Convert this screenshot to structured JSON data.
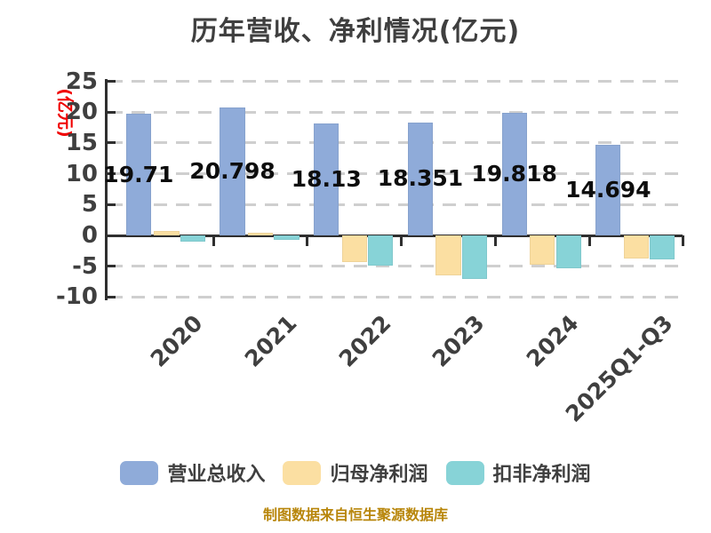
{
  "title": "历年营收、净利情况(亿元)",
  "y_axis_unit_label": "(亿元)",
  "footer": "制图数据来自恒生聚源数据库",
  "colors": {
    "revenue_bar": "#8fabd9",
    "net_profit_bar": "#fbdfa2",
    "deducted_net_profit_bar": "#87d3d7",
    "title_text": "#3f3f3f",
    "axis_text": "#3f3f3f",
    "value_label_text": "#0d0d0d",
    "axis_line": "#2f2f2f",
    "gridline": "#cfcfcf",
    "unit_label_text": "#f00000",
    "footer_text": "#b8860b",
    "background": "#ffffff"
  },
  "chart_data": {
    "type": "bar",
    "title": "历年营收、净利情况(亿元)",
    "ylabel": "(亿元)",
    "categories": [
      "2020",
      "2021",
      "2022",
      "2023",
      "2024",
      "2025Q1-Q3"
    ],
    "series": [
      {
        "key": "revenue",
        "name": "营业总收入",
        "color": "#8fabd9",
        "values": [
          19.71,
          20.798,
          18.13,
          18.351,
          19.818,
          14.694
        ]
      },
      {
        "key": "net-profit",
        "name": "归母净利润",
        "color": "#fbdfa2",
        "values": [
          0.7,
          0.5,
          -4.3,
          -6.5,
          -4.8,
          -3.7
        ]
      },
      {
        "key": "deducted-net-profit",
        "name": "扣非净利润",
        "color": "#87d3d7",
        "values": [
          -1.0,
          -0.75,
          -4.85,
          -7.1,
          -5.4,
          -3.85
        ]
      }
    ],
    "value_labels": [
      "19.71",
      "20.798",
      "18.13",
      "18.351",
      "19.818",
      "14.694"
    ],
    "value_labels_series": "revenue",
    "yticks": [
      25,
      20,
      15,
      10,
      5,
      0,
      -5,
      -10
    ],
    "ylim": [
      -10,
      25
    ],
    "grid": "dashed-horizontal",
    "legend_position": "bottom",
    "note": "values of net-profit series are estimated from bar heights; only revenue values are labeled on chart"
  }
}
